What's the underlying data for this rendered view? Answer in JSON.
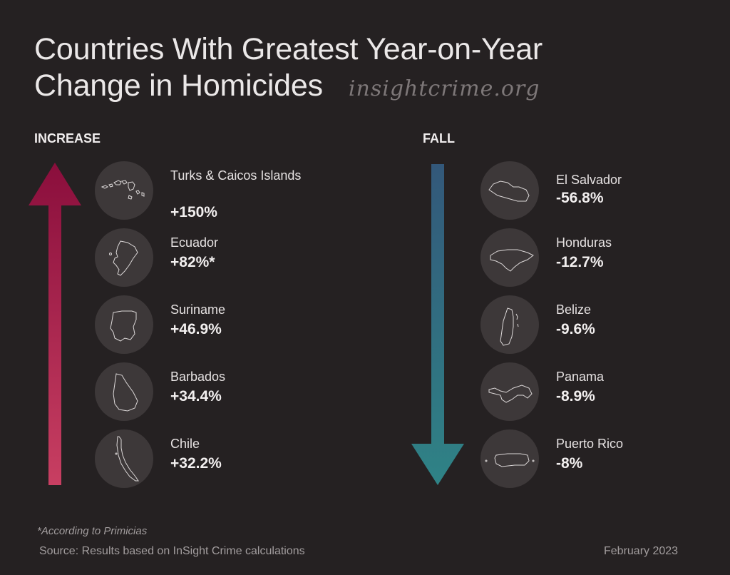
{
  "title_line1": "Countries With Greatest Year-on-Year",
  "title_line2": "Change in Homicides",
  "brand": "insightcrime.org",
  "increase_label": "INCREASE",
  "fall_label": "FALL",
  "colors": {
    "background": "#252122",
    "increase_top": "#8a0e3c",
    "increase_bottom": "#c83f62",
    "fall_top": "#33587a",
    "fall_bottom": "#2f8386",
    "circle": "#3d3839"
  },
  "chart_data": {
    "type": "table",
    "title": "Countries With Greatest Year-on-Year Change in Homicides",
    "increase": [
      {
        "country": "Turks & Caicos Islands",
        "change": "+150%",
        "value": 150,
        "icon": "turks-caicos-map-icon"
      },
      {
        "country": "Ecuador",
        "change": "+82%*",
        "value": 82,
        "icon": "ecuador-map-icon"
      },
      {
        "country": "Suriname",
        "change": "+46.9%",
        "value": 46.9,
        "icon": "suriname-map-icon"
      },
      {
        "country": "Barbados",
        "change": "+34.4%",
        "value": 34.4,
        "icon": "barbados-map-icon"
      },
      {
        "country": "Chile",
        "change": "+32.2%",
        "value": 32.2,
        "icon": "chile-map-icon"
      }
    ],
    "fall": [
      {
        "country": "El Salvador",
        "change": "-56.8%",
        "value": -56.8,
        "icon": "el-salvador-map-icon"
      },
      {
        "country": "Honduras",
        "change": "-12.7%",
        "value": -12.7,
        "icon": "honduras-map-icon"
      },
      {
        "country": "Belize",
        "change": "-9.6%",
        "value": -9.6,
        "icon": "belize-map-icon"
      },
      {
        "country": "Panama",
        "change": "-8.9%",
        "value": -8.9,
        "icon": "panama-map-icon"
      },
      {
        "country": "Puerto Rico",
        "change": "-8%",
        "value": -8,
        "icon": "puerto-rico-map-icon"
      }
    ]
  },
  "footnote": "*According to Primicias",
  "source": "Source: Results based on InSight Crime calculations",
  "date": "February 2023"
}
